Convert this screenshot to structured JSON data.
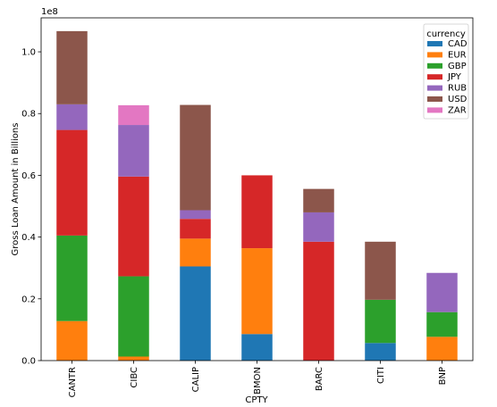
{
  "chart_data": {
    "type": "bar",
    "stacked": true,
    "categories": [
      "CANTR",
      "CIBC",
      "CALIP",
      "BMON",
      "BARC",
      "CITI",
      "BNP"
    ],
    "series": [
      {
        "name": "CAD",
        "color": "#1f77b4",
        "values": [
          0,
          0,
          0.305,
          0.086,
          0,
          0.057,
          0
        ]
      },
      {
        "name": "EUR",
        "color": "#ff7f0e",
        "values": [
          0.128,
          0.013,
          0.09,
          0.278,
          0,
          0,
          0.077
        ]
      },
      {
        "name": "GBP",
        "color": "#2ca02c",
        "values": [
          0.277,
          0.26,
          0,
          0,
          0,
          0.14,
          0.08
        ]
      },
      {
        "name": "JPY",
        "color": "#d62728",
        "values": [
          0.342,
          0.323,
          0.064,
          0.236,
          0.385,
          0,
          0
        ]
      },
      {
        "name": "RUB",
        "color": "#9467bd",
        "values": [
          0.083,
          0.167,
          0.028,
          0,
          0.095,
          0,
          0.127
        ]
      },
      {
        "name": "USD",
        "color": "#8c564b",
        "values": [
          0.237,
          0,
          0.341,
          0,
          0.076,
          0.188,
          0
        ]
      },
      {
        "name": "ZAR",
        "color": "#e377c2",
        "values": [
          0,
          0.064,
          0,
          0,
          0,
          0,
          0
        ]
      }
    ],
    "ylim": [
      0,
      1.11
    ],
    "yticks": [
      "0.0",
      "0.2",
      "0.4",
      "0.6",
      "0.8",
      "1.0"
    ],
    "y_scale_label": "1e8",
    "xlabel": "CPTY",
    "ylabel": "Gross Loan Amount in Billions",
    "legend": {
      "title": "currency",
      "placement": "top-right"
    },
    "grid": false
  }
}
